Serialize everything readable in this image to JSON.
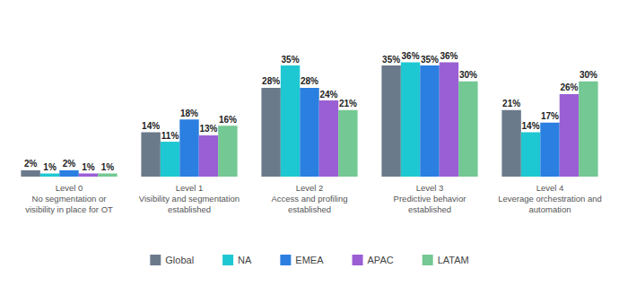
{
  "chart_data": {
    "type": "bar",
    "categories": [
      "Level 0\nNo segmentation or\nvisibility in place for OT",
      "Level 1\nVisibility and segmentation\nestablished",
      "Level 2\nAccess and profiling\nestablished",
      "Level 3\nPredictive behavior\nestablished",
      "Level 4\nLeverage orchestration and\nautomation"
    ],
    "series": [
      {
        "name": "Global",
        "color": "#6b7a8a",
        "values": [
          2,
          14,
          28,
          35,
          21
        ],
        "value_labels": [
          "2%",
          "14%",
          "28%",
          "35%",
          "21%"
        ]
      },
      {
        "name": "NA",
        "color": "#1ec8d2",
        "values": [
          1,
          11,
          35,
          36,
          14
        ],
        "value_labels": [
          "1%",
          "11%",
          "35%",
          "36%",
          "14%"
        ]
      },
      {
        "name": "EMEA",
        "color": "#2b7fe0",
        "values": [
          2,
          18,
          28,
          35,
          17
        ],
        "value_labels": [
          "2%",
          "18%",
          "28%",
          "35%",
          "17%"
        ]
      },
      {
        "name": "APAC",
        "color": "#9a5fd4",
        "values": [
          1,
          13,
          24,
          36,
          26
        ],
        "value_labels": [
          "1%",
          "13%",
          "24%",
          "36%",
          "26%"
        ]
      },
      {
        "name": "LATAM",
        "color": "#74c893",
        "values": [
          1,
          16,
          21,
          30,
          30
        ],
        "value_labels": [
          "1%",
          "16%",
          "21%",
          "30%",
          "30%"
        ]
      }
    ],
    "ylim": [
      0,
      50
    ],
    "grid": false,
    "legend": "bottom",
    "data_labels": true,
    "tick_labels": "x"
  }
}
